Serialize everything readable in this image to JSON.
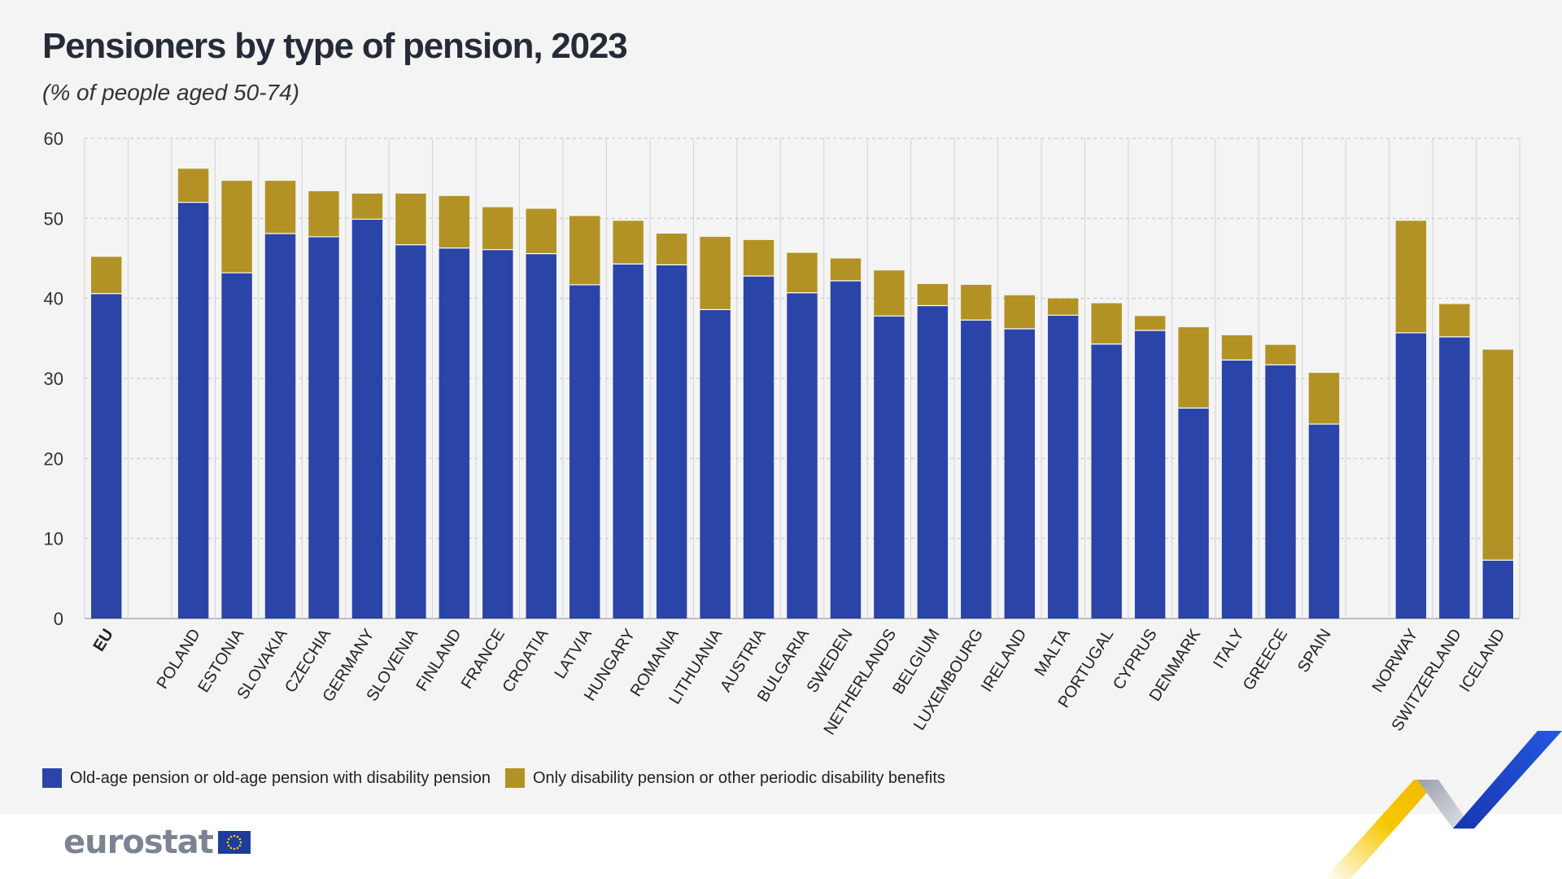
{
  "header": {
    "title": "Pensioners by type of pension, 2023",
    "subtitle": "(% of people aged 50-74)"
  },
  "legend": {
    "items": [
      {
        "label": "Old-age pension or old-age pension with disability pension",
        "color": "#2a44a8"
      },
      {
        "label": "Only disability pension or other periodic disability benefits",
        "color": "#b29224"
      }
    ]
  },
  "branding": {
    "logo_text": "eurostat",
    "accent_blue": "#1a46c7",
    "accent_yellow": "#f6c800"
  },
  "chart_data": {
    "type": "bar",
    "stacked": true,
    "title": "Pensioners by type of pension, 2023",
    "subtitle": "(% of people aged 50-74)",
    "xlabel": "",
    "ylabel": "",
    "ylim": [
      0,
      60
    ],
    "yticks": [
      0,
      10,
      20,
      30,
      40,
      50,
      60
    ],
    "grid": true,
    "legend_position": "bottom-left",
    "categories": [
      "EU",
      "POLAND",
      "ESTONIA",
      "SLOVAKIA",
      "CZECHIA",
      "GERMANY",
      "SLOVENIA",
      "FINLAND",
      "FRANCE",
      "CROATIA",
      "LATVIA",
      "HUNGARY",
      "ROMANIA",
      "LITHUANIA",
      "AUSTRIA",
      "BULGARIA",
      "SWEDEN",
      "NETHERLANDS",
      "BELGIUM",
      "LUXEMBOURG",
      "IRELAND",
      "MALTA",
      "PORTUGAL",
      "CYPRUS",
      "DENMARK",
      "ITALY",
      "GREECE",
      "SPAIN",
      "NORWAY",
      "SWITZERLAND",
      "ICELAND"
    ],
    "groups": [
      [
        0
      ],
      [
        1,
        2,
        3,
        4,
        5,
        6,
        7,
        8,
        9,
        10,
        11,
        12,
        13,
        14,
        15,
        16,
        17,
        18,
        19,
        20,
        21,
        22,
        23,
        24,
        25,
        26,
        27
      ],
      [
        28,
        29,
        30
      ]
    ],
    "bold_categories": [
      "EU"
    ],
    "series": [
      {
        "name": "Old-age pension or old-age pension with disability pension",
        "color": "#2a44a8",
        "values": [
          40.6,
          52.0,
          43.2,
          48.1,
          47.7,
          49.9,
          46.7,
          46.3,
          46.1,
          45.6,
          41.7,
          44.3,
          44.2,
          38.6,
          42.8,
          40.7,
          42.2,
          37.8,
          39.1,
          37.3,
          36.2,
          37.9,
          34.3,
          36.0,
          26.3,
          32.3,
          31.7,
          24.3,
          35.7,
          35.2,
          7.3
        ]
      },
      {
        "name": "Only disability pension or other periodic disability benefits",
        "color": "#b29224",
        "values": [
          4.6,
          4.2,
          11.5,
          6.6,
          5.7,
          3.2,
          6.4,
          6.5,
          5.3,
          5.6,
          8.6,
          5.4,
          3.9,
          9.1,
          4.5,
          5.0,
          2.8,
          5.7,
          2.7,
          4.4,
          4.2,
          2.1,
          5.1,
          1.8,
          10.1,
          3.1,
          2.5,
          6.4,
          14.0,
          4.1,
          26.3
        ]
      }
    ]
  }
}
